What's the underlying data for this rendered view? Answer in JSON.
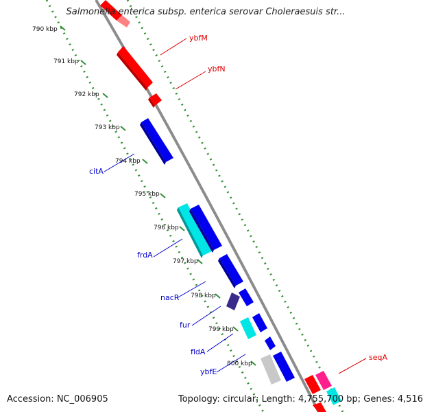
{
  "title": "Salmonella enterica subsp. enterica serovar Choleraesuis str...",
  "footer": {
    "accession": "Accession: NC_006905",
    "summary": "Topology: circular; Length: 4,755,700 bp; Genes: 4,516"
  },
  "colors": {
    "backbone": "#8c8c8c",
    "tick_dots": "#2f8f2f",
    "forward_gene": "#ff0000",
    "reverse_gene": "#0000ee",
    "cyan_gene": "#00e6e6",
    "dark_gene": "#3a2a8a",
    "gray_gene": "#c8c8c8",
    "magenta_gene": "#ff1e8c",
    "label_red": "#dd0000",
    "label_blue": "#0000cc"
  },
  "ticks": [
    {
      "label": "790 kbp"
    },
    {
      "label": "791 kbp"
    },
    {
      "label": "792 kbp"
    },
    {
      "label": "793 kbp"
    },
    {
      "label": "794 kbp"
    },
    {
      "label": "795 kbp"
    },
    {
      "label": "796 kbp"
    },
    {
      "label": "797 kbp"
    },
    {
      "label": "798 kbp"
    },
    {
      "label": "799 kbp"
    },
    {
      "label": "800 kbp"
    }
  ],
  "gene_labels": {
    "ybfM": "ybfM",
    "ybfN": "ybfN",
    "citA": "citA",
    "frdA": "frdA",
    "nacR": "nacR",
    "fur": "fur",
    "fldA": "fldA",
    "ybfE": "ybfE",
    "seqA": "seqA"
  }
}
